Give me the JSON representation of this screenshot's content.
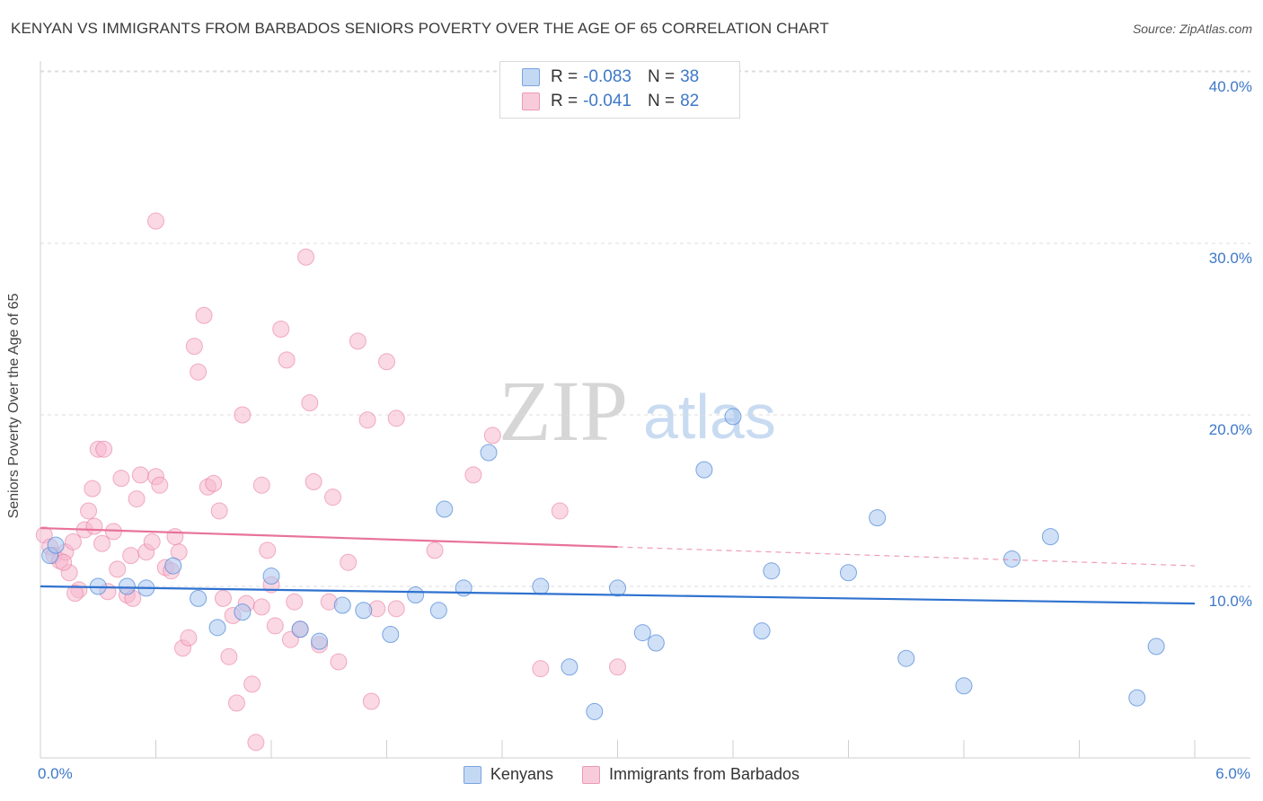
{
  "title": "KENYAN VS IMMIGRANTS FROM BARBADOS SENIORS POVERTY OVER THE AGE OF 65 CORRELATION CHART",
  "source": "Source: ZipAtlas.com",
  "watermark": {
    "zip": "ZIP",
    "atlas": "atlas"
  },
  "colors": {
    "kenyan": "#4a86d8",
    "kenyan_fill": "#a9c7ef",
    "barbados": "#e8729a",
    "barbados_fill": "#f5b8cd",
    "axis_text": "#3d78c9"
  },
  "legend": {
    "rows": [
      {
        "r_label": "R =",
        "r_value": "-0.083",
        "n_label": "N =",
        "n_value": "38"
      },
      {
        "r_label": "R =",
        "r_value": "-0.041",
        "n_label": "N =",
        "n_value": "82"
      }
    ]
  },
  "chart_data": {
    "type": "scatter",
    "ylabel": "Seniors Poverty Over the Age of 65",
    "xlim": [
      0,
      6
    ],
    "ylim": [
      0,
      40
    ],
    "x_tick_labels": [
      "0.0%",
      "6.0%"
    ],
    "y_ticks": [
      10,
      20,
      30,
      40
    ],
    "y_tick_labels": [
      "10.0%",
      "20.0%",
      "30.0%",
      "40.0%"
    ],
    "grid": true,
    "series": [
      {
        "name": "Kenyans",
        "trend": {
          "x0": 0,
          "y0": 10.0,
          "x1": 6.0,
          "y1": 9.0,
          "solid_to": 6.0
        },
        "points": [
          [
            0.05,
            11.8
          ],
          [
            0.08,
            12.4
          ],
          [
            0.3,
            10.0
          ],
          [
            0.55,
            9.9
          ],
          [
            0.69,
            11.2
          ],
          [
            0.82,
            9.3
          ],
          [
            0.92,
            7.6
          ],
          [
            1.05,
            8.5
          ],
          [
            1.2,
            10.6
          ],
          [
            1.35,
            7.5
          ],
          [
            1.45,
            6.8
          ],
          [
            1.57,
            8.9
          ],
          [
            1.68,
            8.6
          ],
          [
            1.82,
            7.2
          ],
          [
            1.95,
            9.5
          ],
          [
            2.07,
            8.6
          ],
          [
            2.2,
            9.9
          ],
          [
            2.33,
            17.8
          ],
          [
            2.6,
            10.0
          ],
          [
            2.75,
            5.3
          ],
          [
            2.88,
            2.7
          ],
          [
            3.0,
            9.9
          ],
          [
            3.13,
            7.3
          ],
          [
            3.2,
            6.7
          ],
          [
            3.45,
            16.8
          ],
          [
            3.6,
            19.9
          ],
          [
            3.75,
            7.4
          ],
          [
            3.8,
            10.9
          ],
          [
            4.2,
            10.8
          ],
          [
            4.35,
            14.0
          ],
          [
            4.5,
            5.8
          ],
          [
            4.8,
            4.2
          ],
          [
            5.05,
            11.6
          ],
          [
            5.25,
            12.9
          ],
          [
            5.7,
            3.5
          ],
          [
            5.8,
            6.5
          ],
          [
            2.1,
            14.5
          ],
          [
            0.45,
            10.0
          ]
        ]
      },
      {
        "name": "Immigrants from Barbados",
        "trend": {
          "x0": 0,
          "y0": 13.4,
          "x1": 6.0,
          "y1": 11.2,
          "solid_to": 3.0
        },
        "points": [
          [
            0.02,
            13.0
          ],
          [
            0.05,
            12.3
          ],
          [
            0.07,
            11.8
          ],
          [
            0.1,
            11.5
          ],
          [
            0.13,
            12.0
          ],
          [
            0.15,
            10.8
          ],
          [
            0.17,
            12.6
          ],
          [
            0.2,
            9.8
          ],
          [
            0.23,
            13.3
          ],
          [
            0.25,
            14.4
          ],
          [
            0.27,
            15.7
          ],
          [
            0.3,
            18.0
          ],
          [
            0.32,
            12.5
          ],
          [
            0.35,
            9.7
          ],
          [
            0.38,
            13.2
          ],
          [
            0.4,
            11.0
          ],
          [
            0.42,
            16.3
          ],
          [
            0.45,
            9.5
          ],
          [
            0.47,
            11.8
          ],
          [
            0.5,
            15.1
          ],
          [
            0.55,
            12.0
          ],
          [
            0.58,
            12.6
          ],
          [
            0.6,
            16.4
          ],
          [
            0.62,
            15.9
          ],
          [
            0.65,
            11.1
          ],
          [
            0.68,
            10.9
          ],
          [
            0.7,
            12.9
          ],
          [
            0.72,
            12.0
          ],
          [
            0.74,
            6.4
          ],
          [
            0.77,
            7.0
          ],
          [
            0.8,
            24.0
          ],
          [
            0.82,
            22.5
          ],
          [
            0.85,
            25.8
          ],
          [
            0.87,
            15.8
          ],
          [
            0.9,
            16.0
          ],
          [
            0.93,
            14.4
          ],
          [
            0.95,
            9.3
          ],
          [
            0.98,
            5.9
          ],
          [
            1.0,
            8.3
          ],
          [
            1.02,
            3.2
          ],
          [
            1.05,
            20.0
          ],
          [
            1.07,
            9.0
          ],
          [
            1.1,
            4.3
          ],
          [
            1.12,
            0.9
          ],
          [
            1.15,
            8.8
          ],
          [
            1.18,
            12.1
          ],
          [
            1.2,
            10.1
          ],
          [
            1.22,
            7.7
          ],
          [
            1.25,
            25.0
          ],
          [
            1.28,
            23.2
          ],
          [
            1.3,
            6.9
          ],
          [
            1.32,
            9.1
          ],
          [
            1.35,
            7.5
          ],
          [
            1.38,
            29.2
          ],
          [
            1.4,
            20.7
          ],
          [
            1.42,
            16.1
          ],
          [
            1.45,
            6.6
          ],
          [
            1.5,
            9.1
          ],
          [
            1.52,
            15.2
          ],
          [
            1.55,
            5.6
          ],
          [
            1.6,
            11.4
          ],
          [
            1.65,
            24.3
          ],
          [
            1.7,
            19.7
          ],
          [
            1.72,
            3.3
          ],
          [
            1.75,
            8.7
          ],
          [
            1.8,
            23.1
          ],
          [
            1.85,
            19.8
          ],
          [
            2.05,
            12.1
          ],
          [
            2.25,
            16.5
          ],
          [
            2.35,
            18.8
          ],
          [
            2.6,
            5.2
          ],
          [
            2.7,
            14.4
          ],
          [
            3.0,
            5.3
          ],
          [
            0.12,
            11.4
          ],
          [
            0.18,
            9.6
          ],
          [
            0.28,
            13.5
          ],
          [
            0.33,
            18.0
          ],
          [
            0.48,
            9.3
          ],
          [
            0.52,
            16.5
          ],
          [
            0.6,
            31.3
          ],
          [
            1.15,
            15.9
          ],
          [
            1.85,
            8.7
          ]
        ]
      }
    ]
  },
  "bottom_legend": [
    "Kenyans",
    "Immigrants from Barbados"
  ]
}
